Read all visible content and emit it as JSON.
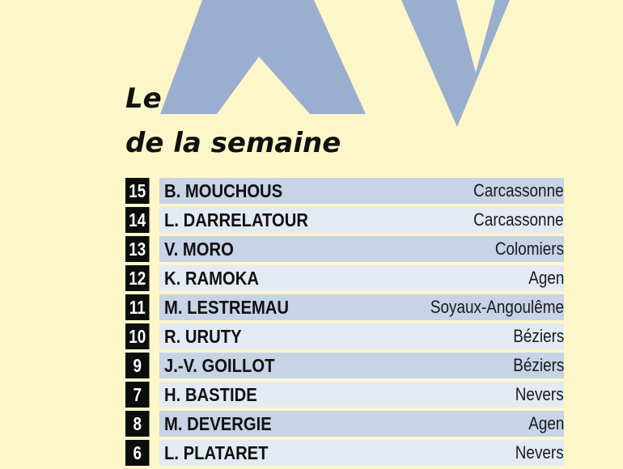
{
  "title": {
    "line1": "Le",
    "line2": "de la semaine"
  },
  "colors": {
    "background": "#fdf6c9",
    "xv_graphic": "#9aafcf",
    "badge": "#0d0d0d",
    "row_dark": "#c7d3e6",
    "row_light": "#e4eaf3"
  },
  "players": [
    {
      "number": "15",
      "name": "B. MOUCHOUS",
      "club": "Carcassonne"
    },
    {
      "number": "14",
      "name": "L. DARRELATOUR",
      "club": "Carcassonne"
    },
    {
      "number": "13",
      "name": "V. MORO",
      "club": "Colomiers"
    },
    {
      "number": "12",
      "name": "K. RAMOKA",
      "club": "Agen"
    },
    {
      "number": "11",
      "name": "M. LESTREMAU",
      "club": "Soyaux-Angoulême"
    },
    {
      "number": "10",
      "name": "R. URUTY",
      "club": "Béziers"
    },
    {
      "number": "9",
      "name": "J.-V. GOILLOT",
      "club": "Béziers"
    },
    {
      "number": "7",
      "name": "H. BASTIDE",
      "club": "Nevers"
    },
    {
      "number": "8",
      "name": "M. DEVERGIE",
      "club": "Agen"
    },
    {
      "number": "6",
      "name": "L. PLATARET",
      "club": "Nevers"
    }
  ]
}
